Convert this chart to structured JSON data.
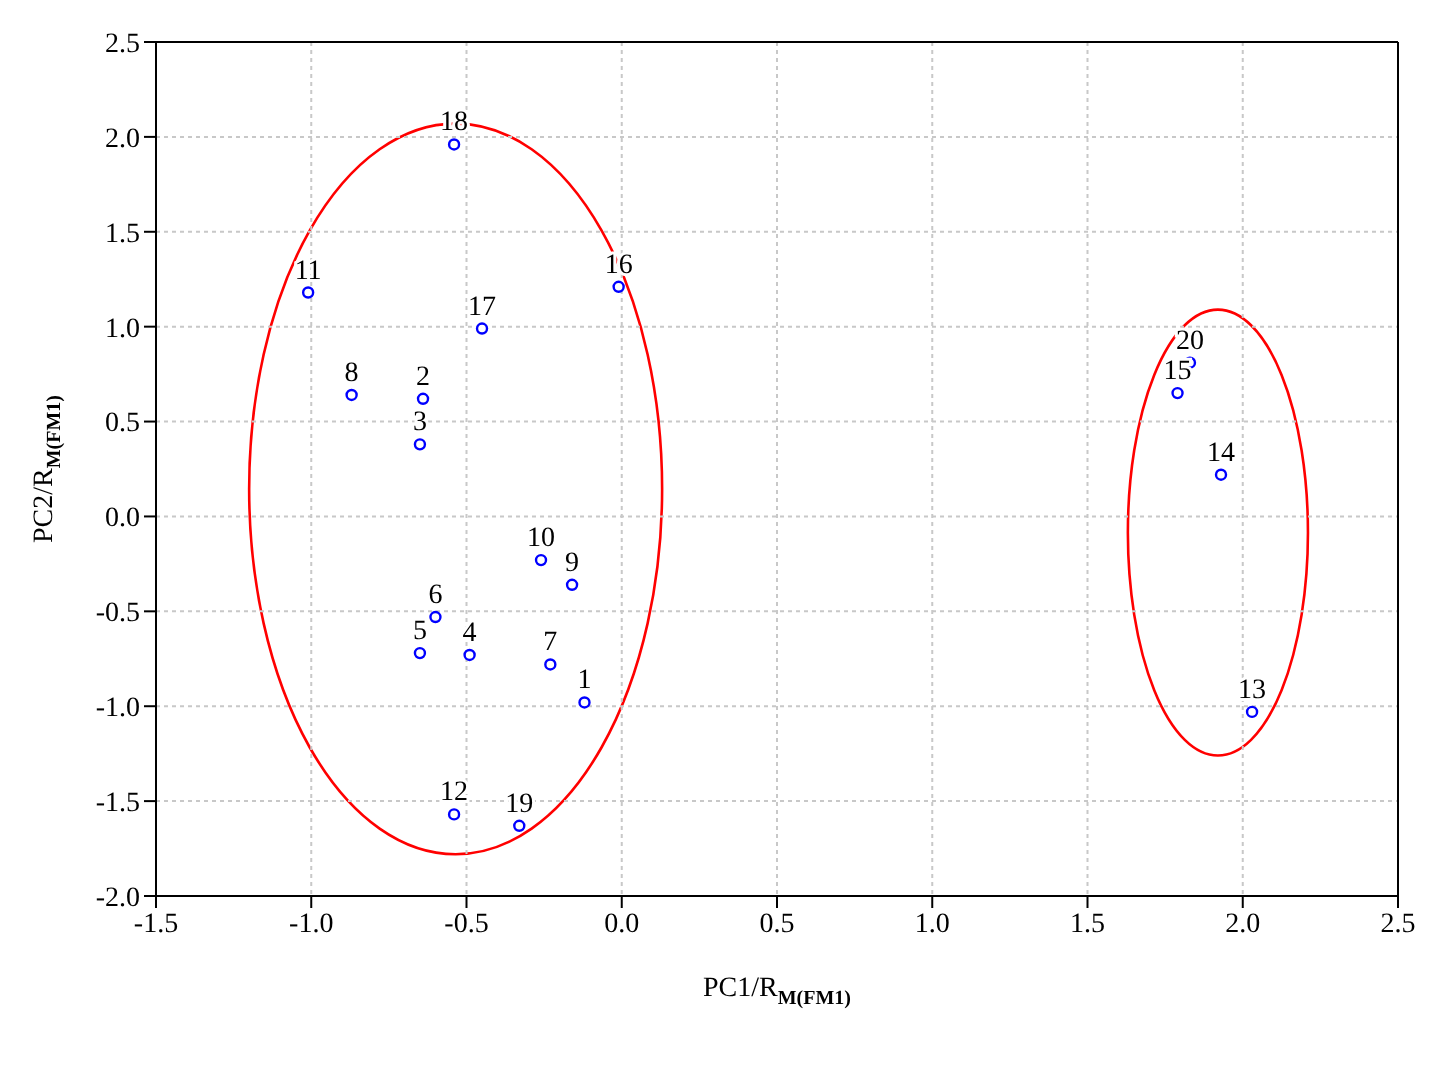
{
  "chart_data": {
    "type": "scatter",
    "xlabel": "PC1/R$_{M(FM1)}$",
    "ylabel": "PC2/R$_{M(FM1)}$",
    "xlim": [
      -1.5,
      2.5
    ],
    "ylim": [
      -2.0,
      2.5
    ],
    "xticks": [
      {
        "value": -1.5,
        "label": "-1.5"
      },
      {
        "value": -1.0,
        "label": "-1.0"
      },
      {
        "value": -0.5,
        "label": "-0.5"
      },
      {
        "value": 0,
        "label": "0.0"
      },
      {
        "value": 0.5,
        "label": "0.5"
      },
      {
        "value": 1.0,
        "label": "1.0"
      },
      {
        "value": 1.5,
        "label": "1.5"
      },
      {
        "value": 2.0,
        "label": "2.0"
      },
      {
        "value": 2.5,
        "label": "2.5"
      }
    ],
    "yticks": [
      {
        "value": -2.0,
        "label": "-2.0"
      },
      {
        "value": -1.5,
        "label": "-1.5"
      },
      {
        "value": -1.0,
        "label": "-1.0"
      },
      {
        "value": -0.5,
        "label": "-0.5"
      },
      {
        "value": 0,
        "label": "0.0"
      },
      {
        "value": 0.5,
        "label": "0.5"
      },
      {
        "value": 1.0,
        "label": "1.0"
      },
      {
        "value": 1.5,
        "label": "1.5"
      },
      {
        "value": 2.0,
        "label": "2.0"
      },
      {
        "value": 2.5,
        "label": "2.5"
      }
    ],
    "grid": true,
    "marker": "circle",
    "annotations": [
      {
        "text": "1",
        "x": -0.12,
        "y": -0.98
      },
      {
        "text": "2",
        "x": -0.64,
        "y": 0.62
      },
      {
        "text": "3",
        "x": -0.65,
        "y": 0.38
      },
      {
        "text": "4",
        "x": -0.49,
        "y": -0.73
      },
      {
        "text": "5",
        "x": -0.65,
        "y": -0.72
      },
      {
        "text": "6",
        "x": -0.6,
        "y": -0.53
      },
      {
        "text": "7",
        "x": -0.23,
        "y": -0.78
      },
      {
        "text": "8",
        "x": -0.87,
        "y": 0.64
      },
      {
        "text": "9",
        "x": -0.16,
        "y": -0.36
      },
      {
        "text": "10",
        "x": -0.26,
        "y": -0.23
      },
      {
        "text": "11",
        "x": -1.01,
        "y": 1.18
      },
      {
        "text": "12",
        "x": -0.54,
        "y": -1.57
      },
      {
        "text": "13",
        "x": 2.03,
        "y": -1.03
      },
      {
        "text": "14",
        "x": 1.93,
        "y": 0.22
      },
      {
        "text": "15",
        "x": 1.79,
        "y": 0.65
      },
      {
        "text": "16",
        "x": -0.01,
        "y": 1.21
      },
      {
        "text": "17",
        "x": -0.45,
        "y": 0.99
      },
      {
        "text": "18",
        "x": -0.54,
        "y": 1.96
      },
      {
        "text": "19",
        "x": -0.33,
        "y": -1.63
      },
      {
        "text": "20",
        "x": 1.83,
        "y": 0.81
      }
    ],
    "series": [
      {
        "type": "scatter",
        "color": "#0000ff",
        "x": [
          -0.12,
          -0.64,
          -0.65,
          -0.49,
          -0.65,
          -0.6,
          -0.23,
          -0.87,
          -0.16,
          -0.26,
          -1.01,
          -0.54,
          2.03,
          1.93,
          1.79,
          -0.01,
          -0.45,
          -0.54,
          -0.33,
          1.83
        ],
        "values": [
          -0.98,
          0.62,
          0.38,
          -0.73,
          -0.72,
          -0.53,
          -0.78,
          0.64,
          -0.36,
          -0.23,
          1.18,
          -1.57,
          -1.03,
          0.22,
          0.65,
          1.21,
          0.99,
          1.96,
          -1.63,
          0.81
        ]
      }
    ]
  }
}
